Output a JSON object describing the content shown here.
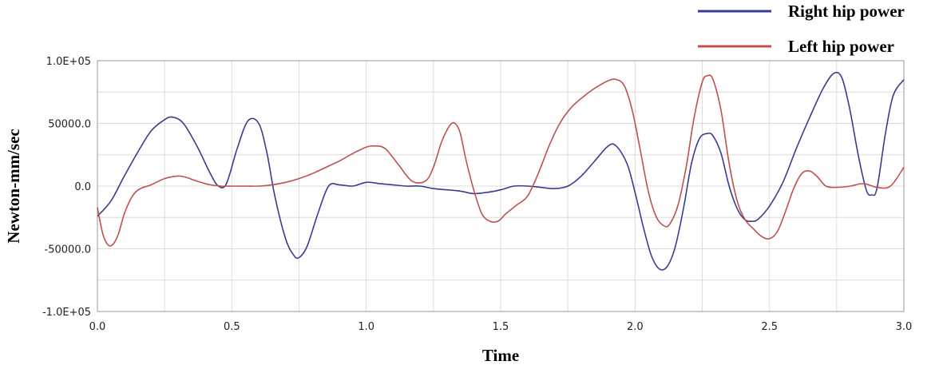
{
  "chart_data": {
    "type": "line",
    "xlabel": "Time",
    "ylabel": "Newton-mm/sec",
    "xlim": [
      0,
      3.0
    ],
    "ylim": [
      -100000,
      100000
    ],
    "x_ticks": [
      0,
      0.5,
      1.0,
      1.5,
      2.0,
      2.5,
      3.0
    ],
    "x_tick_labels": [
      "0.0",
      "0.5",
      "1.0",
      "1.5",
      "2.0",
      "2.5",
      "3.0"
    ],
    "y_ticks": [
      100000,
      50000,
      0,
      -50000,
      -100000
    ],
    "y_tick_labels": [
      "1.0E+05",
      "50000.0",
      "0.0",
      "-50000.0",
      "-1.0E+05"
    ],
    "grid": true,
    "legend_position": "top-right, above plot",
    "series": [
      {
        "name": "Right hip power",
        "color": "#3b3b8f",
        "x": [
          0.0,
          0.05,
          0.1,
          0.15,
          0.2,
          0.25,
          0.28,
          0.32,
          0.37,
          0.42,
          0.45,
          0.48,
          0.52,
          0.56,
          0.6,
          0.63,
          0.66,
          0.7,
          0.73,
          0.75,
          0.78,
          0.82,
          0.86,
          0.9,
          0.95,
          1.0,
          1.05,
          1.1,
          1.15,
          1.2,
          1.25,
          1.3,
          1.35,
          1.4,
          1.45,
          1.5,
          1.55,
          1.6,
          1.65,
          1.7,
          1.75,
          1.8,
          1.85,
          1.9,
          1.93,
          1.97,
          2.0,
          2.03,
          2.06,
          2.09,
          2.12,
          2.15,
          2.18,
          2.21,
          2.24,
          2.27,
          2.29,
          2.32,
          2.35,
          2.38,
          2.41,
          2.44,
          2.46,
          2.5,
          2.55,
          2.6,
          2.65,
          2.7,
          2.74,
          2.77,
          2.8,
          2.83,
          2.86,
          2.88,
          2.9,
          2.93,
          2.96,
          3.0
        ],
        "y": [
          -24000,
          -12000,
          8000,
          27000,
          44000,
          53000,
          55000,
          50000,
          32000,
          10000,
          0,
          2000,
          30000,
          52000,
          50000,
          27000,
          -8000,
          -42000,
          -55000,
          -57000,
          -48000,
          -22000,
          0,
          1000,
          0,
          3000,
          2000,
          1000,
          0,
          0,
          -2000,
          -3000,
          -4000,
          -6000,
          -5000,
          -3000,
          0,
          0,
          -1000,
          -2000,
          0,
          8000,
          20000,
          32000,
          32000,
          18000,
          -5000,
          -32000,
          -55000,
          -66000,
          -64000,
          -48000,
          -18000,
          18000,
          38000,
          42000,
          40000,
          26000,
          0,
          -18000,
          -27000,
          -28000,
          -26000,
          -16000,
          3000,
          30000,
          55000,
          78000,
          90000,
          86000,
          60000,
          25000,
          -3000,
          -7000,
          -2000,
          40000,
          72000,
          85000
        ]
      },
      {
        "name": "Left hip power",
        "color": "#c0504d",
        "x": [
          0.0,
          0.02,
          0.04,
          0.06,
          0.08,
          0.1,
          0.13,
          0.16,
          0.2,
          0.25,
          0.3,
          0.33,
          0.37,
          0.42,
          0.46,
          0.5,
          0.55,
          0.6,
          0.65,
          0.7,
          0.75,
          0.8,
          0.85,
          0.9,
          0.95,
          1.0,
          1.03,
          1.07,
          1.12,
          1.17,
          1.22,
          1.25,
          1.28,
          1.31,
          1.33,
          1.35,
          1.37,
          1.4,
          1.43,
          1.46,
          1.49,
          1.52,
          1.56,
          1.6,
          1.64,
          1.68,
          1.72,
          1.76,
          1.8,
          1.85,
          1.9,
          1.93,
          1.96,
          1.99,
          2.02,
          2.05,
          2.08,
          2.11,
          2.13,
          2.16,
          2.19,
          2.22,
          2.25,
          2.27,
          2.29,
          2.32,
          2.35,
          2.38,
          2.41,
          2.44,
          2.47,
          2.5,
          2.53,
          2.56,
          2.59,
          2.62,
          2.65,
          2.68,
          2.71,
          2.75,
          2.8,
          2.85,
          2.9,
          2.95,
          3.0
        ],
        "y": [
          -17000,
          -38000,
          -47000,
          -46000,
          -37000,
          -22000,
          -8000,
          -2000,
          1000,
          6000,
          8000,
          7000,
          4000,
          1000,
          0,
          0,
          0,
          0,
          1000,
          3000,
          6000,
          10000,
          15000,
          20000,
          26000,
          31000,
          32000,
          30000,
          17000,
          4000,
          4000,
          15000,
          35000,
          48000,
          50000,
          42000,
          22000,
          -3000,
          -22000,
          -28000,
          -28000,
          -22000,
          -15000,
          -8000,
          10000,
          32000,
          50000,
          62000,
          70000,
          78000,
          84000,
          85000,
          80000,
          60000,
          28000,
          -5000,
          -25000,
          -32000,
          -30000,
          -15000,
          15000,
          55000,
          83000,
          88000,
          85000,
          60000,
          18000,
          -12000,
          -27000,
          -34000,
          -40000,
          -42000,
          -36000,
          -20000,
          -2000,
          10000,
          12000,
          7000,
          0,
          -1000,
          0,
          2000,
          -1000,
          0,
          15000
        ]
      }
    ]
  }
}
